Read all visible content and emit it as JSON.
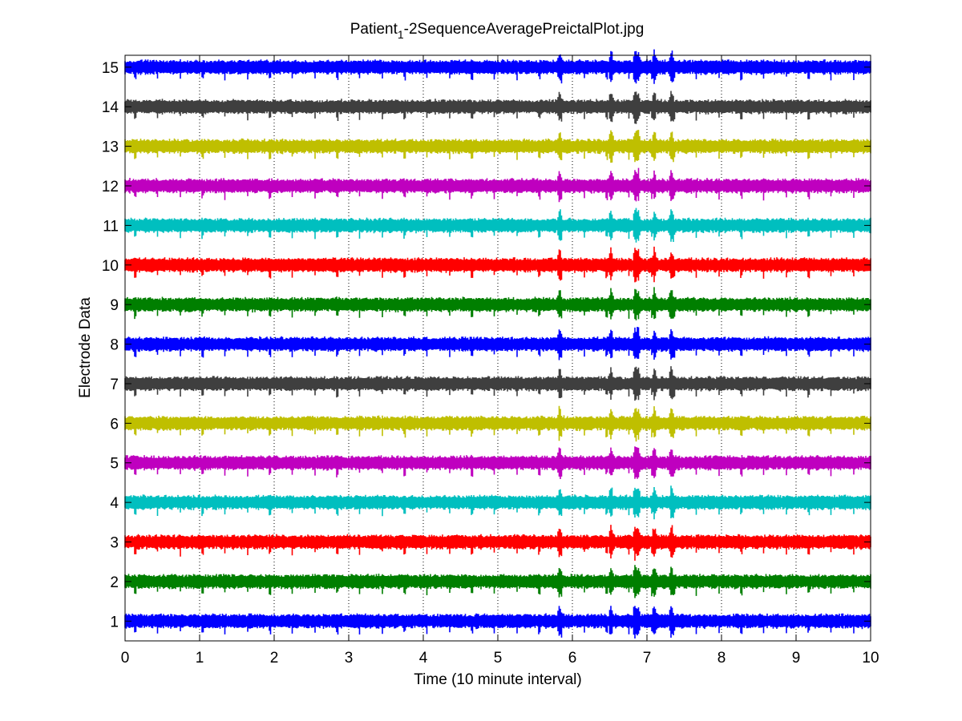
{
  "chart_data": {
    "type": "line",
    "title_main": "Patient",
    "title_sub": "1",
    "title_rest": "-2SequenceAveragePreictalPlot.jpg",
    "xlabel": "Time (10 minute interval)",
    "ylabel": "Electrode Data",
    "xlim": [
      0,
      10
    ],
    "ylim": [
      0.5,
      15.3
    ],
    "x_ticks": [
      "0",
      "1",
      "2",
      "3",
      "4",
      "5",
      "6",
      "7",
      "8",
      "9",
      "10"
    ],
    "y_ticks": [
      "1",
      "2",
      "3",
      "4",
      "5",
      "6",
      "7",
      "8",
      "9",
      "10",
      "11",
      "12",
      "13",
      "14",
      "15"
    ],
    "grid": "dotted",
    "legend": "none",
    "series": [
      {
        "electrode": 1,
        "color": "#0000ff"
      },
      {
        "electrode": 2,
        "color": "#007f00"
      },
      {
        "electrode": 3,
        "color": "#ff0000"
      },
      {
        "electrode": 4,
        "color": "#00bfbf"
      },
      {
        "electrode": 5,
        "color": "#bf00bf"
      },
      {
        "electrode": 6,
        "color": "#bfbf00"
      },
      {
        "electrode": 7,
        "color": "#3f3f3f"
      },
      {
        "electrode": 8,
        "color": "#0000ff"
      },
      {
        "electrode": 9,
        "color": "#007f00"
      },
      {
        "electrode": 10,
        "color": "#ff0000"
      },
      {
        "electrode": 11,
        "color": "#00bfbf"
      },
      {
        "electrode": 12,
        "color": "#bf00bf"
      },
      {
        "electrode": 13,
        "color": "#bfbf00"
      },
      {
        "electrode": 14,
        "color": "#3f3f3f"
      },
      {
        "electrode": 15,
        "color": "#0000ff"
      }
    ],
    "spike_times": [
      5.83,
      6.84,
      6.88,
      6.52,
      7.33,
      7.1
    ]
  }
}
